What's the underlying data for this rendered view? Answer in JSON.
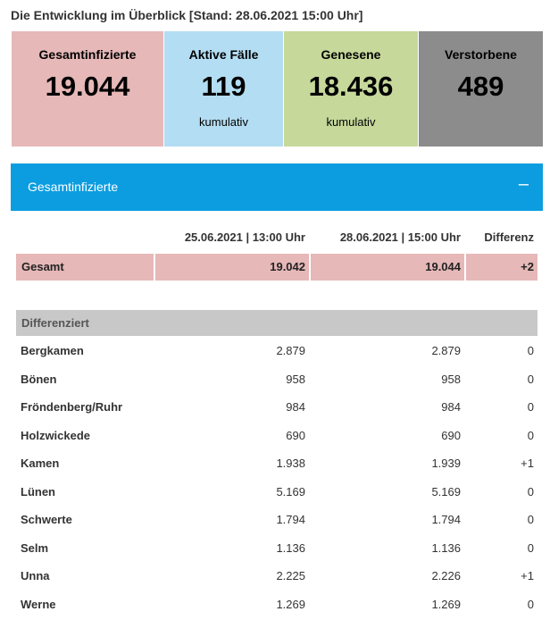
{
  "headline": "Die Entwicklung im Überblick [Stand: 28.06.2021 15:00 Uhr]",
  "tiles": [
    {
      "label": "Gesamtinfizierte",
      "value": "19.044",
      "sub": ""
    },
    {
      "label": "Aktive Fälle",
      "value": "119",
      "sub": "kumulativ"
    },
    {
      "label": "Genesene",
      "value": "18.436",
      "sub": "kumulativ"
    },
    {
      "label": "Verstorbene",
      "value": "489",
      "sub": ""
    }
  ],
  "accordion": {
    "label": "Gesamtinfizierte",
    "toggle": "–"
  },
  "table": {
    "headers": [
      "25.06.2021 | 13:00 Uhr",
      "28.06.2021 | 15:00 Uhr",
      "Differenz"
    ],
    "total": {
      "name": "Gesamt",
      "v1": "19.042",
      "v2": "19.044",
      "diff": "+2"
    },
    "section": "Differenziert",
    "rows": [
      {
        "name": "Bergkamen",
        "v1": "2.879",
        "v2": "2.879",
        "diff": "0"
      },
      {
        "name": "Bönen",
        "v1": "958",
        "v2": "958",
        "diff": "0"
      },
      {
        "name": "Fröndenberg/Ruhr",
        "v1": "984",
        "v2": "984",
        "diff": "0"
      },
      {
        "name": "Holzwickede",
        "v1": "690",
        "v2": "690",
        "diff": "0"
      },
      {
        "name": "Kamen",
        "v1": "1.938",
        "v2": "1.939",
        "diff": "+1"
      },
      {
        "name": "Lünen",
        "v1": "5.169",
        "v2": "5.169",
        "diff": "0"
      },
      {
        "name": "Schwerte",
        "v1": "1.794",
        "v2": "1.794",
        "diff": "0"
      },
      {
        "name": "Selm",
        "v1": "1.136",
        "v2": "1.136",
        "diff": "0"
      },
      {
        "name": "Unna",
        "v1": "2.225",
        "v2": "2.226",
        "diff": "+1"
      },
      {
        "name": "Werne",
        "v1": "1.269",
        "v2": "1.269",
        "diff": "0"
      }
    ]
  }
}
